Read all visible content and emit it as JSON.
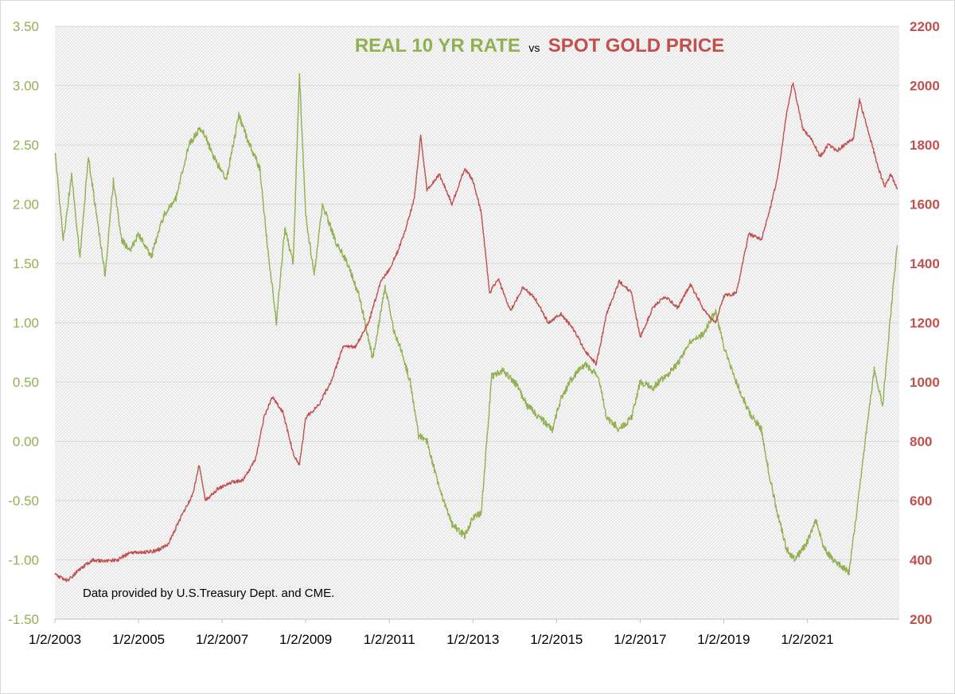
{
  "chart_data": {
    "type": "line",
    "title": {
      "part1": "REAL 10 YR RATE",
      "connector": "vs",
      "part2": "SPOT GOLD PRICE"
    },
    "annotation": "Data provided by U.S.Treasury Dept. and CME.",
    "x_tick_labels": [
      "1/2/2003",
      "1/2/2005",
      "1/2/2007",
      "1/2/2009",
      "1/2/2011",
      "1/2/2013",
      "1/2/2015",
      "1/2/2017",
      "1/2/2019",
      "1/2/2021"
    ],
    "x_range": [
      2003.0,
      2023.2
    ],
    "y_left": {
      "range": [
        -1.5,
        3.5
      ],
      "tick_labels": [
        "3.50",
        "3.00",
        "2.50",
        "2.00",
        "1.50",
        "1.00",
        "0.50",
        "0.00",
        "-0.50",
        "-1.00",
        "-1.50"
      ]
    },
    "y_right": {
      "range": [
        200,
        2200
      ],
      "tick_labels": [
        "2200",
        "2000",
        "1800",
        "1600",
        "1400",
        "1200",
        "1000",
        "800",
        "600",
        "400",
        "200"
      ]
    },
    "grid": true,
    "colors": {
      "real_rate": "#92b050",
      "gold": "#c0504d",
      "grid": "#d9d9d9",
      "plot_bg": "#f2f2f2"
    },
    "series": [
      {
        "name": "REAL 10 YR RATE",
        "axis": "left",
        "x": [
          2003.0,
          2003.2,
          2003.4,
          2003.6,
          2003.8,
          2004.0,
          2004.2,
          2004.4,
          2004.6,
          2004.8,
          2005.0,
          2005.3,
          2005.6,
          2005.9,
          2006.2,
          2006.5,
          2006.8,
          2007.1,
          2007.4,
          2007.6,
          2007.9,
          2008.1,
          2008.3,
          2008.5,
          2008.7,
          2008.85,
          2009.0,
          2009.2,
          2009.4,
          2009.7,
          2010.0,
          2010.3,
          2010.6,
          2010.9,
          2011.1,
          2011.3,
          2011.5,
          2011.7,
          2011.9,
          2012.2,
          2012.5,
          2012.8,
          2013.0,
          2013.2,
          2013.45,
          2013.7,
          2014.0,
          2014.3,
          2014.6,
          2014.9,
          2015.1,
          2015.4,
          2015.7,
          2016.0,
          2016.2,
          2016.5,
          2016.8,
          2017.0,
          2017.3,
          2017.6,
          2017.9,
          2018.2,
          2018.5,
          2018.8,
          2019.0,
          2019.3,
          2019.6,
          2019.9,
          2020.1,
          2020.25,
          2020.5,
          2020.7,
          2021.0,
          2021.2,
          2021.4,
          2021.6,
          2021.8,
          2022.0,
          2022.2,
          2022.4,
          2022.6,
          2022.8,
          2023.0,
          2023.15
        ],
        "values": [
          2.45,
          1.7,
          2.25,
          1.55,
          2.4,
          1.9,
          1.4,
          2.2,
          1.7,
          1.6,
          1.75,
          1.55,
          1.9,
          2.05,
          2.5,
          2.65,
          2.4,
          2.2,
          2.75,
          2.55,
          2.3,
          1.6,
          1.0,
          1.8,
          1.5,
          3.1,
          1.9,
          1.4,
          2.0,
          1.7,
          1.5,
          1.2,
          0.7,
          1.3,
          0.95,
          0.75,
          0.5,
          0.05,
          0.0,
          -0.4,
          -0.7,
          -0.8,
          -0.65,
          -0.6,
          0.55,
          0.6,
          0.5,
          0.3,
          0.2,
          0.1,
          0.35,
          0.55,
          0.65,
          0.55,
          0.2,
          0.1,
          0.2,
          0.5,
          0.45,
          0.55,
          0.65,
          0.85,
          0.9,
          1.1,
          0.8,
          0.5,
          0.25,
          0.1,
          -0.3,
          -0.55,
          -0.9,
          -1.0,
          -0.85,
          -0.65,
          -0.9,
          -1.0,
          -1.05,
          -1.1,
          -0.55,
          0.05,
          0.6,
          0.3,
          1.1,
          1.65
        ]
      },
      {
        "name": "SPOT GOLD PRICE",
        "axis": "right",
        "x": [
          2003.0,
          2003.3,
          2003.6,
          2003.9,
          2004.2,
          2004.5,
          2004.8,
          2005.1,
          2005.4,
          2005.7,
          2006.0,
          2006.3,
          2006.45,
          2006.6,
          2006.9,
          2007.2,
          2007.5,
          2007.8,
          2008.0,
          2008.2,
          2008.45,
          2008.7,
          2008.85,
          2009.0,
          2009.3,
          2009.6,
          2009.9,
          2010.2,
          2010.5,
          2010.8,
          2011.0,
          2011.2,
          2011.4,
          2011.6,
          2011.75,
          2011.9,
          2012.2,
          2012.5,
          2012.8,
          2013.0,
          2013.2,
          2013.4,
          2013.6,
          2013.9,
          2014.2,
          2014.5,
          2014.8,
          2015.1,
          2015.4,
          2015.7,
          2015.95,
          2016.2,
          2016.5,
          2016.8,
          2017.0,
          2017.3,
          2017.6,
          2017.9,
          2018.2,
          2018.5,
          2018.8,
          2019.0,
          2019.3,
          2019.6,
          2019.9,
          2020.1,
          2020.3,
          2020.5,
          2020.65,
          2020.9,
          2021.1,
          2021.3,
          2021.5,
          2021.7,
          2021.9,
          2022.1,
          2022.25,
          2022.45,
          2022.7,
          2022.85,
          2023.0,
          2023.15
        ],
        "values": [
          350,
          330,
          370,
          400,
          395,
          400,
          425,
          425,
          430,
          450,
          540,
          620,
          720,
          600,
          640,
          660,
          670,
          740,
          880,
          950,
          900,
          760,
          720,
          880,
          920,
          1000,
          1120,
          1120,
          1200,
          1340,
          1380,
          1440,
          1520,
          1620,
          1830,
          1650,
          1700,
          1600,
          1720,
          1680,
          1570,
          1300,
          1350,
          1240,
          1320,
          1280,
          1200,
          1230,
          1180,
          1100,
          1060,
          1230,
          1340,
          1300,
          1150,
          1250,
          1290,
          1250,
          1330,
          1250,
          1200,
          1290,
          1300,
          1500,
          1480,
          1580,
          1700,
          1900,
          2010,
          1850,
          1820,
          1760,
          1800,
          1780,
          1800,
          1820,
          1950,
          1850,
          1720,
          1660,
          1700,
          1650
        ]
      }
    ]
  }
}
